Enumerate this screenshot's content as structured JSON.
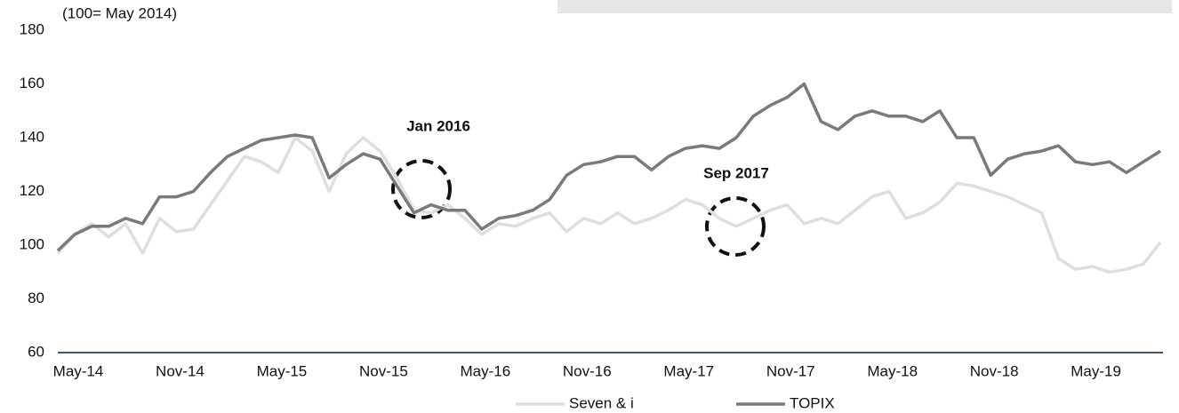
{
  "chart_data": {
    "type": "line",
    "subtitle": "(100= May 2014)",
    "categories": [
      "May-14",
      null,
      null,
      null,
      null,
      null,
      "Nov-14",
      null,
      null,
      null,
      null,
      null,
      "May-15",
      null,
      null,
      null,
      null,
      null,
      "Nov-15",
      null,
      null,
      null,
      null,
      null,
      "May-16",
      null,
      null,
      null,
      null,
      null,
      "Nov-16",
      null,
      null,
      null,
      null,
      null,
      "May-17",
      null,
      null,
      null,
      null,
      null,
      "Nov-17",
      null,
      null,
      null,
      null,
      null,
      "May-18",
      null,
      null,
      null,
      null,
      null,
      "Nov-18",
      null,
      null,
      null,
      null,
      null,
      "May-19",
      null,
      null,
      null,
      null,
      null
    ],
    "series": [
      {
        "name": "Seven & i",
        "color": "#dedede",
        "values": [
          97,
          104,
          108,
          103,
          108,
          97,
          110,
          105,
          106,
          115,
          124,
          133,
          131,
          127,
          140,
          135,
          120,
          134,
          140,
          135,
          125,
          113,
          112,
          115,
          110,
          104,
          108,
          107,
          110,
          112,
          105,
          110,
          108,
          112,
          108,
          110,
          113,
          117,
          115,
          110,
          107,
          110,
          113,
          115,
          108,
          110,
          108,
          113,
          118,
          120,
          110,
          112,
          116,
          123,
          122,
          120,
          118,
          115,
          112,
          95,
          91,
          92,
          90,
          91,
          93,
          101
        ]
      },
      {
        "name": "TOPIX",
        "color": "#7a7a7a",
        "values": [
          98,
          104,
          107,
          107,
          110,
          108,
          118,
          118,
          120,
          127,
          133,
          136,
          139,
          140,
          141,
          140,
          125,
          130,
          134,
          132,
          122,
          112,
          115,
          113,
          113,
          106,
          110,
          111,
          113,
          117,
          126,
          130,
          131,
          133,
          133,
          128,
          133,
          136,
          137,
          136,
          140,
          148,
          152,
          155,
          160,
          146,
          143,
          148,
          150,
          148,
          148,
          146,
          150,
          140,
          140,
          126,
          132,
          134,
          135,
          137,
          131,
          130,
          131,
          127,
          131,
          135
        ]
      }
    ],
    "annotations": [
      "Jan 2016",
      "Sep 2017"
    ],
    "ylim": [
      60,
      180
    ],
    "yticks": [
      60,
      80,
      100,
      120,
      140,
      160,
      180
    ]
  }
}
